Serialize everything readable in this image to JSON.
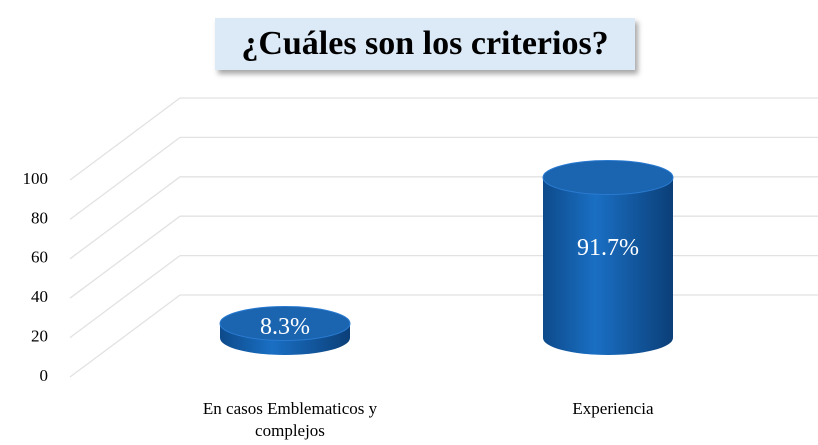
{
  "chart_data": {
    "type": "bar3d",
    "title": "¿Cuáles son los criterios?",
    "categories": [
      "En casos Emblematicos y complejos",
      "Experiencia"
    ],
    "values": [
      8.3,
      91.7
    ],
    "value_labels": [
      "8.3%",
      "91.7%"
    ],
    "color": "#1565b5",
    "ylim": [
      0,
      100
    ],
    "yticks": [
      0,
      20,
      40,
      60,
      80,
      100
    ],
    "grid": true
  }
}
